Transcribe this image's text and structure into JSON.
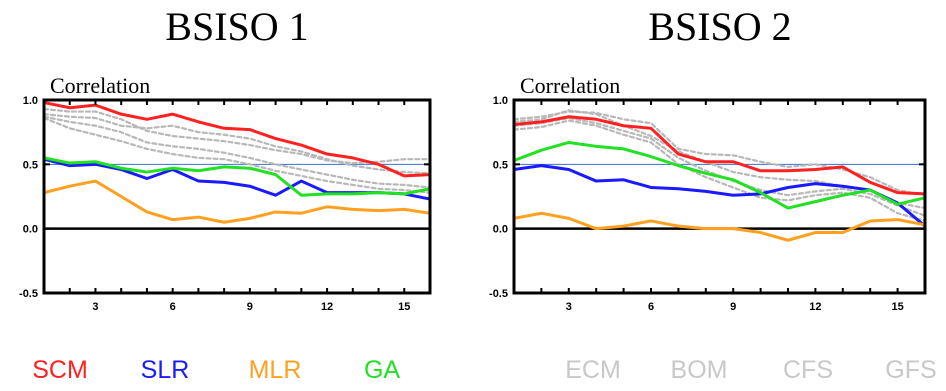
{
  "chart_data": [
    {
      "type": "line",
      "title": "BSISO 1",
      "ylabel": "Correlation",
      "xlabel": "",
      "xlim": [
        1,
        16
      ],
      "ylim": [
        -0.5,
        1.0
      ],
      "xticks": [
        3,
        6,
        9,
        12,
        15
      ],
      "xtick_labels": [
        "3",
        "6",
        "9",
        "12",
        "15"
      ],
      "yticks": [
        -0.5,
        0.0,
        0.5,
        1.0
      ],
      "ytick_labels": [
        "-0.5",
        "0.0",
        "0.5",
        "1.0"
      ],
      "reference_lines": [
        {
          "y": 0.0,
          "color": "#000000"
        },
        {
          "y": 0.5,
          "color": "#3a6fd8"
        }
      ],
      "x": [
        1,
        2,
        3,
        4,
        5,
        6,
        7,
        8,
        9,
        10,
        11,
        12,
        13,
        14,
        15,
        16
      ],
      "series": [
        {
          "name": "SCM",
          "color": "#ff2020",
          "dashed": false,
          "values": [
            0.98,
            0.94,
            0.96,
            0.89,
            0.85,
            0.89,
            0.83,
            0.78,
            0.77,
            0.7,
            0.65,
            0.58,
            0.55,
            0.5,
            0.41,
            0.42
          ]
        },
        {
          "name": "SLR",
          "color": "#1a1aff",
          "dashed": false,
          "values": [
            0.54,
            0.49,
            0.5,
            0.46,
            0.39,
            0.46,
            0.37,
            0.36,
            0.33,
            0.26,
            0.37,
            0.28,
            0.28,
            0.28,
            0.27,
            0.23
          ]
        },
        {
          "name": "MLR",
          "color": "#ffa020",
          "dashed": false,
          "values": [
            0.28,
            0.33,
            0.37,
            0.25,
            0.13,
            0.07,
            0.09,
            0.05,
            0.08,
            0.13,
            0.12,
            0.17,
            0.15,
            0.14,
            0.15,
            0.12
          ]
        },
        {
          "name": "GA",
          "color": "#22e022",
          "dashed": false,
          "values": [
            0.55,
            0.51,
            0.52,
            0.47,
            0.44,
            0.47,
            0.45,
            0.48,
            0.47,
            0.42,
            0.26,
            0.27,
            0.27,
            0.28,
            0.27,
            0.31
          ]
        },
        {
          "name": "ECM",
          "color": "#b8b8b8",
          "dashed": true,
          "values": [
            0.89,
            0.87,
            0.86,
            0.8,
            0.78,
            0.8,
            0.75,
            0.73,
            0.7,
            0.64,
            0.6,
            0.54,
            0.49,
            0.46,
            0.44,
            0.43
          ]
        },
        {
          "name": "BOM",
          "color": "#b8b8b8",
          "dashed": true,
          "values": [
            0.93,
            0.91,
            0.91,
            0.85,
            0.76,
            0.72,
            0.7,
            0.68,
            0.65,
            0.61,
            0.58,
            0.53,
            0.51,
            0.52,
            0.54,
            0.54
          ]
        },
        {
          "name": "CFS",
          "color": "#b8b8b8",
          "dashed": true,
          "values": [
            0.87,
            0.83,
            0.8,
            0.75,
            0.67,
            0.64,
            0.62,
            0.59,
            0.55,
            0.5,
            0.46,
            0.42,
            0.38,
            0.35,
            0.34,
            0.32
          ]
        },
        {
          "name": "GFS",
          "color": "#b8b8b8",
          "dashed": true,
          "values": [
            0.86,
            0.78,
            0.73,
            0.68,
            0.62,
            0.58,
            0.55,
            0.54,
            0.5,
            0.45,
            0.41,
            0.37,
            0.34,
            0.31,
            0.3,
            0.28
          ]
        }
      ]
    },
    {
      "type": "line",
      "title": "BSISO 2",
      "ylabel": "Correlation",
      "xlabel": "",
      "xlim": [
        1,
        16
      ],
      "ylim": [
        -0.5,
        1.0
      ],
      "xticks": [
        3,
        6,
        9,
        12,
        15
      ],
      "xtick_labels": [
        "3",
        "6",
        "9",
        "12",
        "15"
      ],
      "yticks": [
        -0.5,
        0.0,
        0.5,
        1.0
      ],
      "ytick_labels": [
        "-0.5",
        "0.0",
        "0.5",
        "1.0"
      ],
      "reference_lines": [
        {
          "y": 0.0,
          "color": "#000000"
        },
        {
          "y": 0.5,
          "color": "#3a6fd8"
        }
      ],
      "x": [
        1,
        2,
        3,
        4,
        5,
        6,
        7,
        8,
        9,
        10,
        11,
        12,
        13,
        14,
        15,
        16
      ],
      "series": [
        {
          "name": "SCM",
          "color": "#ff2020",
          "dashed": false,
          "values": [
            0.81,
            0.83,
            0.87,
            0.85,
            0.8,
            0.78,
            0.58,
            0.52,
            0.52,
            0.45,
            0.45,
            0.46,
            0.48,
            0.36,
            0.28,
            0.27
          ]
        },
        {
          "name": "SLR",
          "color": "#1a1aff",
          "dashed": false,
          "values": [
            0.46,
            0.49,
            0.46,
            0.37,
            0.38,
            0.32,
            0.31,
            0.29,
            0.26,
            0.27,
            0.32,
            0.35,
            0.33,
            0.3,
            0.2,
            0.02
          ]
        },
        {
          "name": "MLR",
          "color": "#ffa020",
          "dashed": false,
          "values": [
            0.08,
            0.12,
            0.08,
            0.0,
            0.02,
            0.06,
            0.02,
            0.0,
            0.0,
            -0.03,
            -0.09,
            -0.03,
            -0.03,
            0.06,
            0.07,
            0.03
          ]
        },
        {
          "name": "GA",
          "color": "#22e022",
          "dashed": false,
          "values": [
            0.53,
            0.61,
            0.67,
            0.64,
            0.62,
            0.56,
            0.49,
            0.43,
            0.38,
            0.28,
            0.16,
            0.21,
            0.26,
            0.3,
            0.19,
            0.24
          ]
        },
        {
          "name": "ECM",
          "color": "#b8b8b8",
          "dashed": true,
          "values": [
            0.85,
            0.87,
            0.91,
            0.9,
            0.85,
            0.82,
            0.62,
            0.58,
            0.57,
            0.52,
            0.48,
            0.5,
            0.46,
            0.4,
            0.3,
            0.26
          ]
        },
        {
          "name": "BOM",
          "color": "#b8b8b8",
          "dashed": true,
          "values": [
            0.83,
            0.85,
            0.92,
            0.89,
            0.8,
            0.72,
            0.6,
            0.52,
            0.44,
            0.4,
            0.38,
            0.37,
            0.33,
            0.3,
            0.2,
            0.16
          ]
        },
        {
          "name": "CFS",
          "color": "#b8b8b8",
          "dashed": true,
          "values": [
            0.8,
            0.82,
            0.86,
            0.82,
            0.76,
            0.7,
            0.55,
            0.45,
            0.37,
            0.3,
            0.26,
            0.29,
            0.31,
            0.27,
            0.18,
            0.1
          ]
        },
        {
          "name": "GFS",
          "color": "#b8b8b8",
          "dashed": true,
          "values": [
            0.77,
            0.79,
            0.84,
            0.8,
            0.73,
            0.67,
            0.5,
            0.4,
            0.32,
            0.24,
            0.22,
            0.26,
            0.28,
            0.24,
            0.12,
            0.06
          ]
        }
      ]
    }
  ],
  "legend": {
    "items": [
      {
        "label": "SCM",
        "color": "#ff2020"
      },
      {
        "label": "SLR",
        "color": "#1a1aff"
      },
      {
        "label": "MLR",
        "color": "#ffa020"
      },
      {
        "label": "GA",
        "color": "#22e022"
      },
      {
        "label": "ECM",
        "color": "#c8c8c8"
      },
      {
        "label": "BOM",
        "color": "#c8c8c8"
      },
      {
        "label": "CFS",
        "color": "#c8c8c8"
      },
      {
        "label": "GFS",
        "color": "#c8c8c8"
      }
    ]
  }
}
